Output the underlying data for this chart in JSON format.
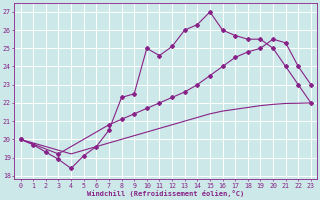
{
  "xlabel": "Windchill (Refroidissement éolien,°C)",
  "bg_color": "#cce8e8",
  "grid_color": "#ffffff",
  "line_color": "#882288",
  "ylim": [
    17.8,
    27.5
  ],
  "xlim": [
    -0.5,
    23.5
  ],
  "yticks": [
    18,
    19,
    20,
    21,
    22,
    23,
    24,
    25,
    26,
    27
  ],
  "xticks": [
    0,
    1,
    2,
    3,
    4,
    5,
    6,
    7,
    8,
    9,
    10,
    11,
    12,
    13,
    14,
    15,
    16,
    17,
    18,
    19,
    20,
    21,
    22,
    23
  ],
  "curve1_x": [
    0,
    1,
    2,
    3,
    4,
    5,
    6,
    7,
    8,
    9,
    10,
    11,
    12,
    13,
    14,
    15,
    16,
    17,
    18,
    19,
    20,
    21,
    22,
    23
  ],
  "curve1_y": [
    20.0,
    19.7,
    19.3,
    18.9,
    18.4,
    19.1,
    19.6,
    20.5,
    22.3,
    22.5,
    25.0,
    24.6,
    25.1,
    26.0,
    26.3,
    27.0,
    26.0,
    25.7,
    25.5,
    25.5,
    25.0,
    24.0,
    23.0,
    22.0
  ],
  "curve2_x": [
    0,
    3,
    7,
    8,
    9,
    10,
    11,
    12,
    13,
    14,
    15,
    16,
    17,
    18,
    19,
    20,
    21,
    22,
    23
  ],
  "curve2_y": [
    20.0,
    19.2,
    20.8,
    21.1,
    21.4,
    21.7,
    22.0,
    22.3,
    22.6,
    23.0,
    23.5,
    24.0,
    24.5,
    24.8,
    25.0,
    25.5,
    25.3,
    24.0,
    23.0
  ],
  "curve3_x": [
    0,
    1,
    2,
    3,
    4,
    5,
    6,
    7,
    8,
    9,
    10,
    11,
    12,
    13,
    14,
    15,
    16,
    17,
    18,
    19,
    20,
    21,
    22,
    23
  ],
  "curve3_y": [
    20.0,
    19.8,
    19.6,
    19.4,
    19.2,
    19.4,
    19.6,
    19.8,
    20.0,
    20.2,
    20.4,
    20.6,
    20.8,
    21.0,
    21.2,
    21.4,
    21.55,
    21.65,
    21.75,
    21.85,
    21.92,
    21.97,
    21.98,
    22.0
  ]
}
